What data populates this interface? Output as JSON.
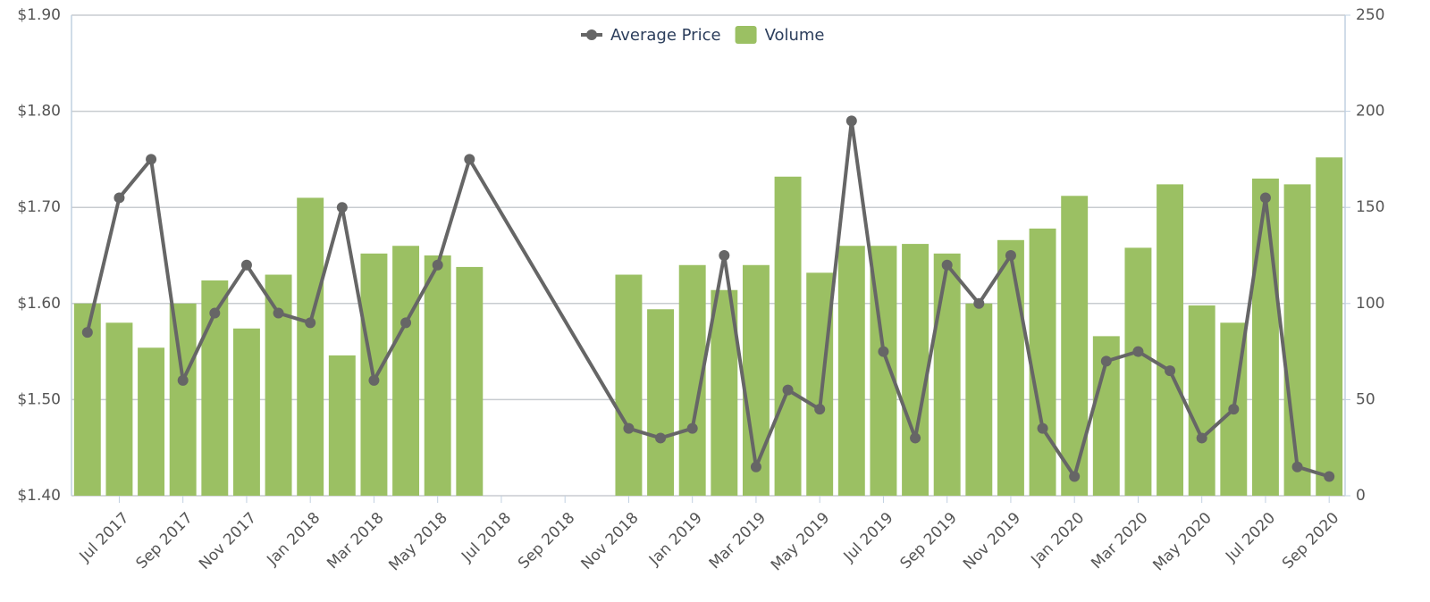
{
  "chart_data": {
    "type": "bar-line",
    "categories": [
      null,
      "Jul 2017",
      null,
      "Sep 2017",
      null,
      "Nov 2017",
      null,
      "Jan 2018",
      null,
      "Mar 2018",
      null,
      "May 2018",
      null,
      "Jul 2018",
      null,
      "Sep 2018",
      null,
      "Nov 2018",
      null,
      "Jan 2019",
      null,
      "Mar 2019",
      null,
      "May 2019",
      null,
      "Jul 2019",
      null,
      "Sep 2019",
      null,
      "Nov 2019",
      null,
      "Jan 2020",
      null,
      "Mar 2020",
      null,
      "May 2020",
      null,
      "Jul 2020",
      null,
      "Sep 2020"
    ],
    "series": [
      {
        "name": "Average Price",
        "type": "line",
        "color": "#666666",
        "connect_nulls": true,
        "values": [
          1.57,
          1.71,
          1.75,
          1.52,
          1.59,
          1.64,
          1.59,
          1.58,
          1.7,
          1.52,
          1.58,
          1.64,
          1.75,
          null,
          null,
          null,
          null,
          1.47,
          1.46,
          1.47,
          1.65,
          1.43,
          1.51,
          1.49,
          1.79,
          1.55,
          1.46,
          1.64,
          1.6,
          1.65,
          1.47,
          1.42,
          1.54,
          1.55,
          1.53,
          1.46,
          1.49,
          1.71,
          1.43,
          1.42
        ]
      },
      {
        "name": "Volume",
        "type": "bar",
        "axis": "y2",
        "color": "#9bc063",
        "values": [
          100,
          90,
          77,
          100,
          112,
          87,
          115,
          155,
          73,
          126,
          130,
          125,
          119,
          null,
          null,
          null,
          null,
          115,
          97,
          120,
          107,
          120,
          166,
          116,
          130,
          130,
          131,
          126,
          100,
          133,
          139,
          156,
          83,
          129,
          162,
          99,
          90,
          165,
          162,
          176
        ]
      }
    ],
    "ylim": [
      1.4,
      1.9
    ],
    "yticks": [
      {
        "value": 1.4,
        "label": "$1.40"
      },
      {
        "value": 1.5,
        "label": "$1.50"
      },
      {
        "value": 1.6,
        "label": "$1.60"
      },
      {
        "value": 1.7,
        "label": "$1.70"
      },
      {
        "value": 1.8,
        "label": "$1.80"
      },
      {
        "value": 1.9,
        "label": "$1.90"
      }
    ],
    "y2lim": [
      0,
      250
    ],
    "y2ticks": [
      0,
      50,
      100,
      150,
      200,
      250
    ],
    "grid": true,
    "legend": "top"
  }
}
